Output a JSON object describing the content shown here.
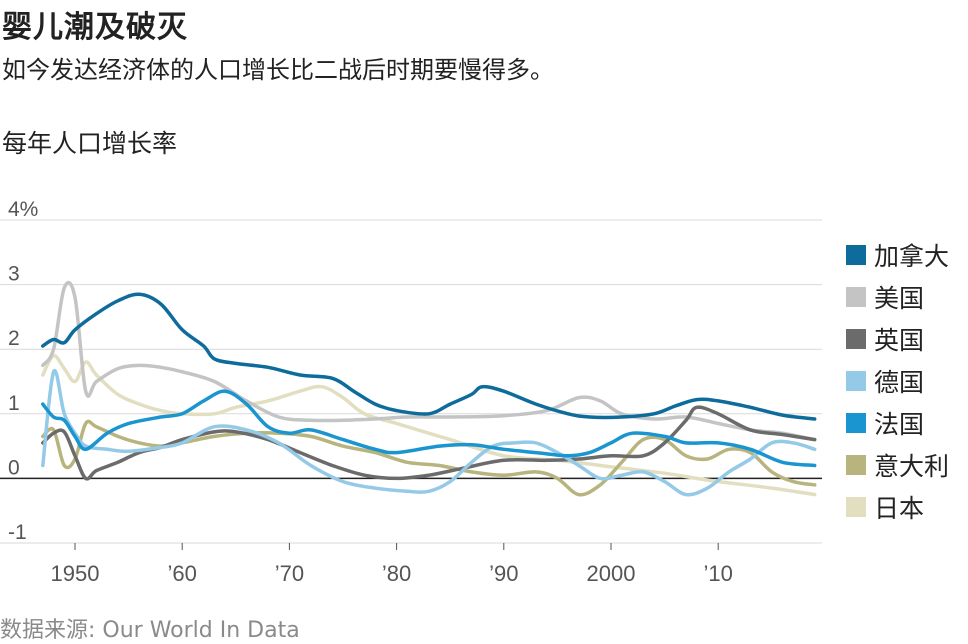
{
  "title": "婴儿潮及破灭",
  "subtitle": "如今发达经济体的人口增长比二战后时期要慢得多。",
  "unit_label": "每年人口增长率",
  "source": "数据来源: Our World In Data",
  "chart_data": {
    "type": "line",
    "ylim": [
      -1,
      4
    ],
    "xlim": [
      1946,
      2020
    ],
    "yticks": [
      {
        "value": 4,
        "label": "4%"
      },
      {
        "value": 3,
        "label": "3"
      },
      {
        "value": 2,
        "label": "2"
      },
      {
        "value": 1,
        "label": "1"
      },
      {
        "value": 0,
        "label": "0"
      },
      {
        "value": -1,
        "label": "-1"
      }
    ],
    "xticks": [
      {
        "value": 1950,
        "label": "1950"
      },
      {
        "value": 1960,
        "label": "’60"
      },
      {
        "value": 1970,
        "label": "’70"
      },
      {
        "value": 1980,
        "label": "’80"
      },
      {
        "value": 1990,
        "label": "’90"
      },
      {
        "value": 2000,
        "label": "2000"
      },
      {
        "value": 2010,
        "label": "’10"
      }
    ],
    "grid": true,
    "legend_position": "right",
    "series": [
      {
        "name": "日本",
        "color": "#e2dec0",
        "points": [
          [
            1947,
            1.6
          ],
          [
            1948,
            1.9
          ],
          [
            1949,
            1.7
          ],
          [
            1950,
            1.5
          ],
          [
            1951,
            1.8
          ],
          [
            1952,
            1.6
          ],
          [
            1954,
            1.3
          ],
          [
            1956,
            1.15
          ],
          [
            1958,
            1.05
          ],
          [
            1960,
            1.0
          ],
          [
            1963,
            1.0
          ],
          [
            1965,
            1.1
          ],
          [
            1968,
            1.2
          ],
          [
            1971,
            1.35
          ],
          [
            1973,
            1.42
          ],
          [
            1975,
            1.25
          ],
          [
            1977,
            1.0
          ],
          [
            1980,
            0.85
          ],
          [
            1985,
            0.6
          ],
          [
            1990,
            0.35
          ],
          [
            1995,
            0.28
          ],
          [
            2000,
            0.18
          ],
          [
            2005,
            0.08
          ],
          [
            2008,
            0.0
          ],
          [
            2010,
            -0.05
          ],
          [
            2015,
            -0.15
          ],
          [
            2019,
            -0.25
          ]
        ]
      },
      {
        "name": "美国",
        "color": "#c4c4c4",
        "points": [
          [
            1947,
            1.75
          ],
          [
            1948,
            2.0
          ],
          [
            1949,
            2.95
          ],
          [
            1950,
            2.8
          ],
          [
            1951,
            1.35
          ],
          [
            1952,
            1.5
          ],
          [
            1954,
            1.7
          ],
          [
            1956,
            1.75
          ],
          [
            1958,
            1.72
          ],
          [
            1960,
            1.65
          ],
          [
            1963,
            1.5
          ],
          [
            1966,
            1.2
          ],
          [
            1969,
            0.95
          ],
          [
            1972,
            0.9
          ],
          [
            1975,
            0.9
          ],
          [
            1978,
            0.92
          ],
          [
            1981,
            0.95
          ],
          [
            1985,
            0.95
          ],
          [
            1990,
            0.97
          ],
          [
            1994,
            1.05
          ],
          [
            1997,
            1.25
          ],
          [
            1999,
            1.2
          ],
          [
            2001,
            1.0
          ],
          [
            2004,
            0.92
          ],
          [
            2007,
            0.95
          ],
          [
            2010,
            0.85
          ],
          [
            2013,
            0.75
          ],
          [
            2016,
            0.7
          ],
          [
            2019,
            0.6
          ]
        ]
      },
      {
        "name": "意大利",
        "color": "#b8b47e",
        "points": [
          [
            1947,
            0.65
          ],
          [
            1948,
            0.75
          ],
          [
            1949,
            0.2
          ],
          [
            1950,
            0.3
          ],
          [
            1951,
            0.85
          ],
          [
            1952,
            0.8
          ],
          [
            1954,
            0.65
          ],
          [
            1956,
            0.55
          ],
          [
            1958,
            0.5
          ],
          [
            1960,
            0.55
          ],
          [
            1963,
            0.65
          ],
          [
            1966,
            0.7
          ],
          [
            1969,
            0.7
          ],
          [
            1972,
            0.65
          ],
          [
            1975,
            0.5
          ],
          [
            1978,
            0.4
          ],
          [
            1981,
            0.25
          ],
          [
            1984,
            0.2
          ],
          [
            1987,
            0.1
          ],
          [
            1990,
            0.05
          ],
          [
            1993,
            0.1
          ],
          [
            1995,
            0.0
          ],
          [
            1997,
            -0.25
          ],
          [
            1999,
            -0.1
          ],
          [
            2001,
            0.25
          ],
          [
            2003,
            0.6
          ],
          [
            2005,
            0.6
          ],
          [
            2007,
            0.35
          ],
          [
            2009,
            0.3
          ],
          [
            2011,
            0.45
          ],
          [
            2013,
            0.4
          ],
          [
            2015,
            0.1
          ],
          [
            2017,
            -0.05
          ],
          [
            2019,
            -0.1
          ]
        ]
      },
      {
        "name": "英国",
        "color": "#6b6b6b",
        "points": [
          [
            1947,
            0.55
          ],
          [
            1948,
            0.7
          ],
          [
            1949,
            0.72
          ],
          [
            1950,
            0.35
          ],
          [
            1951,
            0.0
          ],
          [
            1952,
            0.12
          ],
          [
            1954,
            0.25
          ],
          [
            1956,
            0.4
          ],
          [
            1958,
            0.48
          ],
          [
            1960,
            0.6
          ],
          [
            1963,
            0.72
          ],
          [
            1965,
            0.72
          ],
          [
            1968,
            0.6
          ],
          [
            1971,
            0.4
          ],
          [
            1974,
            0.2
          ],
          [
            1977,
            0.05
          ],
          [
            1980,
            0.0
          ],
          [
            1983,
            0.05
          ],
          [
            1986,
            0.15
          ],
          [
            1990,
            0.28
          ],
          [
            1994,
            0.28
          ],
          [
            1997,
            0.3
          ],
          [
            2000,
            0.35
          ],
          [
            2003,
            0.35
          ],
          [
            2005,
            0.55
          ],
          [
            2007,
            0.9
          ],
          [
            2008,
            1.1
          ],
          [
            2010,
            1.0
          ],
          [
            2013,
            0.75
          ],
          [
            2016,
            0.68
          ],
          [
            2019,
            0.6
          ]
        ]
      },
      {
        "name": "德国",
        "color": "#94c9e8",
        "points": [
          [
            1947,
            0.2
          ],
          [
            1948,
            1.65
          ],
          [
            1949,
            1.0
          ],
          [
            1950,
            0.7
          ],
          [
            1951,
            0.5
          ],
          [
            1953,
            0.45
          ],
          [
            1955,
            0.42
          ],
          [
            1958,
            0.48
          ],
          [
            1960,
            0.55
          ],
          [
            1963,
            0.8
          ],
          [
            1966,
            0.75
          ],
          [
            1969,
            0.55
          ],
          [
            1972,
            0.2
          ],
          [
            1975,
            -0.05
          ],
          [
            1978,
            -0.15
          ],
          [
            1981,
            -0.2
          ],
          [
            1983,
            -0.2
          ],
          [
            1985,
            -0.05
          ],
          [
            1987,
            0.25
          ],
          [
            1989,
            0.5
          ],
          [
            1991,
            0.55
          ],
          [
            1993,
            0.55
          ],
          [
            1995,
            0.4
          ],
          [
            1997,
            0.2
          ],
          [
            1999,
            0.0
          ],
          [
            2001,
            0.05
          ],
          [
            2003,
            0.1
          ],
          [
            2005,
            -0.05
          ],
          [
            2007,
            -0.25
          ],
          [
            2009,
            -0.15
          ],
          [
            2011,
            0.1
          ],
          [
            2013,
            0.3
          ],
          [
            2015,
            0.55
          ],
          [
            2017,
            0.55
          ],
          [
            2019,
            0.45
          ]
        ]
      },
      {
        "name": "法国",
        "color": "#1a95cf",
        "points": [
          [
            1947,
            1.15
          ],
          [
            1948,
            0.95
          ],
          [
            1949,
            0.9
          ],
          [
            1950,
            0.65
          ],
          [
            1951,
            0.45
          ],
          [
            1953,
            0.7
          ],
          [
            1955,
            0.85
          ],
          [
            1958,
            0.95
          ],
          [
            1960,
            1.0
          ],
          [
            1962,
            1.2
          ],
          [
            1964,
            1.35
          ],
          [
            1966,
            1.15
          ],
          [
            1968,
            0.8
          ],
          [
            1970,
            0.7
          ],
          [
            1972,
            0.75
          ],
          [
            1975,
            0.6
          ],
          [
            1978,
            0.45
          ],
          [
            1980,
            0.4
          ],
          [
            1984,
            0.5
          ],
          [
            1987,
            0.52
          ],
          [
            1990,
            0.45
          ],
          [
            1993,
            0.4
          ],
          [
            1996,
            0.35
          ],
          [
            1998,
            0.4
          ],
          [
            2000,
            0.55
          ],
          [
            2002,
            0.7
          ],
          [
            2005,
            0.65
          ],
          [
            2007,
            0.55
          ],
          [
            2010,
            0.55
          ],
          [
            2013,
            0.45
          ],
          [
            2016,
            0.25
          ],
          [
            2019,
            0.2
          ]
        ]
      },
      {
        "name": "加拿大",
        "color": "#0e6c9c",
        "points": [
          [
            1947,
            2.05
          ],
          [
            1948,
            2.15
          ],
          [
            1949,
            2.1
          ],
          [
            1950,
            2.3
          ],
          [
            1952,
            2.55
          ],
          [
            1954,
            2.75
          ],
          [
            1956,
            2.85
          ],
          [
            1958,
            2.7
          ],
          [
            1960,
            2.3
          ],
          [
            1962,
            2.05
          ],
          [
            1963,
            1.85
          ],
          [
            1965,
            1.78
          ],
          [
            1968,
            1.72
          ],
          [
            1971,
            1.6
          ],
          [
            1974,
            1.55
          ],
          [
            1976,
            1.35
          ],
          [
            1978,
            1.15
          ],
          [
            1980,
            1.05
          ],
          [
            1983,
            1.0
          ],
          [
            1985,
            1.15
          ],
          [
            1987,
            1.3
          ],
          [
            1988,
            1.42
          ],
          [
            1990,
            1.35
          ],
          [
            1993,
            1.15
          ],
          [
            1996,
            1.0
          ],
          [
            1998,
            0.95
          ],
          [
            2001,
            0.95
          ],
          [
            2004,
            1.0
          ],
          [
            2006,
            1.12
          ],
          [
            2008,
            1.22
          ],
          [
            2010,
            1.2
          ],
          [
            2013,
            1.1
          ],
          [
            2016,
            0.98
          ],
          [
            2019,
            0.92
          ]
        ]
      }
    ]
  }
}
